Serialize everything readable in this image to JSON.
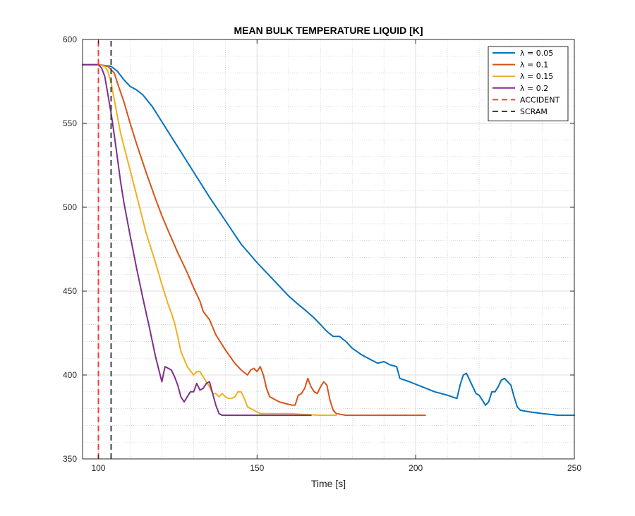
{
  "chart_data": {
    "type": "line",
    "title": "MEAN BULK TEMPERATURE LIQUID [K]",
    "xlabel": "Time [s]",
    "ylabel": "",
    "xlim": [
      95,
      250
    ],
    "ylim": [
      350,
      600
    ],
    "xticks": [
      100,
      150,
      200,
      250
    ],
    "yticks": [
      350,
      400,
      450,
      500,
      550,
      600
    ],
    "grid": true,
    "minor_grid": true,
    "legend_position": "top-right",
    "series": [
      {
        "name": "λ = 0.05",
        "color": "#0072BD",
        "style": "solid",
        "x": [
          95,
          100,
          104,
          106,
          108,
          110,
          112,
          114,
          117,
          120,
          125,
          130,
          135,
          140,
          145,
          150,
          155,
          160,
          163,
          165,
          168,
          170,
          172,
          174,
          176,
          178,
          180,
          183,
          186,
          188,
          190,
          192,
          194,
          195,
          198,
          202,
          206,
          210,
          213,
          214,
          215,
          216,
          217,
          218,
          219,
          220,
          221,
          222,
          223,
          224,
          225,
          226,
          227,
          228,
          229,
          230,
          231,
          232,
          233,
          236,
          240,
          245,
          250
        ],
        "y": [
          585,
          585,
          584,
          581,
          576,
          572,
          570,
          567,
          560,
          551,
          536,
          521,
          506,
          492,
          478,
          467,
          457,
          447,
          442,
          439,
          434,
          430,
          426,
          423,
          423,
          420,
          416,
          412,
          409,
          407,
          408,
          406,
          405,
          398,
          396,
          393,
          390,
          388,
          386,
          394,
          400,
          401,
          397,
          393,
          389,
          388,
          385,
          382,
          384,
          390,
          390,
          393,
          397,
          398,
          396,
          394,
          387,
          381,
          379,
          378,
          377,
          376,
          376
        ]
      },
      {
        "name": "λ = 0.1",
        "color": "#D95319",
        "style": "solid",
        "x": [
          95,
          100,
          103,
          105,
          106,
          108,
          110,
          112,
          115,
          118,
          120,
          122,
          125,
          128,
          130,
          132,
          133,
          135,
          137,
          140,
          143,
          145,
          147,
          148,
          149,
          150,
          151,
          152,
          153,
          154,
          155,
          157,
          159,
          161,
          162,
          163,
          164,
          165,
          166,
          167,
          168,
          169,
          170,
          171,
          172,
          173,
          174,
          175,
          178,
          185,
          195,
          203
        ],
        "y": [
          585,
          585,
          584,
          580,
          574,
          563,
          550,
          538,
          521,
          505,
          495,
          486,
          473,
          461,
          452,
          444,
          438,
          433,
          424,
          415,
          407,
          403,
          400,
          403,
          404,
          402,
          405,
          400,
          392,
          387,
          386,
          384,
          383,
          382,
          382,
          388,
          389,
          392,
          398,
          393,
          390,
          389,
          393,
          396,
          394,
          385,
          379,
          377,
          376,
          376,
          376,
          376
        ]
      },
      {
        "name": "λ = 0.15",
        "color": "#EDB120",
        "style": "solid",
        "x": [
          95,
          100,
          102,
          103,
          104,
          105,
          107,
          110,
          113,
          115,
          118,
          120,
          122,
          123,
          124,
          125,
          126,
          128,
          130,
          131,
          132,
          133,
          134,
          135,
          136,
          137,
          138,
          139,
          140,
          141,
          142,
          143,
          144,
          145,
          146,
          147,
          148,
          149,
          150,
          151,
          160,
          170,
          175
        ],
        "y": [
          585,
          585,
          584,
          581,
          574,
          564,
          544,
          522,
          500,
          485,
          467,
          454,
          442,
          437,
          431,
          423,
          414,
          405,
          400,
          402,
          402,
          399,
          396,
          393,
          389,
          389,
          387,
          389,
          387,
          386,
          386,
          387,
          390,
          390,
          386,
          381,
          380,
          379,
          378,
          377,
          377,
          376,
          376
        ]
      },
      {
        "name": "λ = 0.2",
        "color": "#7E2F8E",
        "style": "solid",
        "x": [
          95,
          100,
          101,
          102,
          103,
          104,
          105,
          106,
          107,
          108,
          110,
          112,
          114,
          116,
          118,
          120,
          121,
          122,
          123,
          124,
          125,
          126,
          127,
          128,
          129,
          130,
          131,
          132,
          133,
          134,
          135,
          136,
          137,
          138,
          139,
          140,
          145,
          150,
          155,
          160,
          167
        ],
        "y": [
          585,
          585,
          583,
          578,
          567,
          556,
          543,
          529,
          515,
          503,
          483,
          464,
          446,
          429,
          411,
          396,
          405,
          404,
          403,
          399,
          394,
          387,
          384,
          387,
          390,
          390,
          395,
          391,
          392,
          395,
          396,
          389,
          382,
          377,
          376,
          376,
          376,
          376,
          376,
          376,
          376
        ]
      },
      {
        "name": "ACCIDENT",
        "color": "#FF3B3B",
        "style": "dashed",
        "vertical": true,
        "x": [
          100,
          100
        ],
        "y": [
          350,
          600
        ]
      },
      {
        "name": "SCRAM",
        "color": "#404040",
        "style": "dashed",
        "vertical": true,
        "x": [
          104,
          104
        ],
        "y": [
          350,
          600
        ]
      }
    ]
  }
}
